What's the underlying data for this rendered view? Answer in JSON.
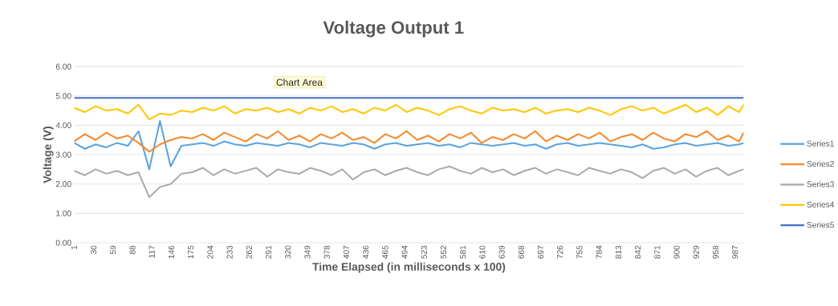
{
  "chart_data": {
    "type": "line",
    "title": "Voltage Output 1",
    "xlabel": "Time Elapsed (in milliseconds x 100)",
    "ylabel": "Voltage (V)",
    "annotations": [
      "Chart Area"
    ],
    "x": [
      1,
      17,
      33,
      49,
      65,
      81,
      97,
      113,
      129,
      145,
      161,
      177,
      193,
      209,
      225,
      241,
      257,
      273,
      289,
      305,
      321,
      337,
      353,
      369,
      385,
      401,
      417,
      433,
      449,
      465,
      481,
      497,
      513,
      529,
      545,
      561,
      577,
      593,
      609,
      625,
      641,
      657,
      673,
      689,
      705,
      721,
      737,
      753,
      769,
      785,
      801,
      817,
      833,
      849,
      865,
      881,
      897,
      913,
      929,
      945,
      961,
      977,
      993,
      1000
    ],
    "xlim": [
      1,
      1000
    ],
    "xticks": [
      1,
      30,
      59,
      88,
      117,
      146,
      175,
      204,
      233,
      262,
      291,
      320,
      349,
      378,
      407,
      436,
      465,
      494,
      523,
      552,
      581,
      610,
      639,
      668,
      697,
      726,
      755,
      784,
      813,
      842,
      871,
      900,
      929,
      958,
      987
    ],
    "ylim": [
      0,
      6
    ],
    "yticks": [
      {
        "value": 0,
        "label": "0.00"
      },
      {
        "value": 1,
        "label": "1.00"
      },
      {
        "value": 2,
        "label": "2.00"
      },
      {
        "value": 3,
        "label": "3.00"
      },
      {
        "value": 4,
        "label": "4.00"
      },
      {
        "value": 5,
        "label": "5.00"
      },
      {
        "value": 6,
        "label": "6.00"
      }
    ],
    "grid": "y",
    "legend": "right",
    "marker": "none",
    "line_style": "solid",
    "series": [
      {
        "name": "Series1",
        "color": "#5ba3dc",
        "values": [
          3.4,
          3.2,
          3.35,
          3.25,
          3.4,
          3.3,
          3.8,
          2.5,
          4.15,
          2.6,
          3.3,
          3.35,
          3.4,
          3.3,
          3.45,
          3.35,
          3.3,
          3.4,
          3.35,
          3.3,
          3.4,
          3.35,
          3.25,
          3.4,
          3.35,
          3.3,
          3.4,
          3.35,
          3.2,
          3.35,
          3.4,
          3.3,
          3.35,
          3.4,
          3.3,
          3.35,
          3.25,
          3.4,
          3.35,
          3.3,
          3.35,
          3.4,
          3.3,
          3.35,
          3.2,
          3.35,
          3.4,
          3.3,
          3.35,
          3.4,
          3.35,
          3.3,
          3.25,
          3.35,
          3.2,
          3.25,
          3.35,
          3.4,
          3.3,
          3.35,
          3.4,
          3.3,
          3.35,
          3.4
        ]
      },
      {
        "name": "Series2",
        "color": "#f5892a",
        "values": [
          3.45,
          3.7,
          3.5,
          3.75,
          3.55,
          3.65,
          3.4,
          3.1,
          3.35,
          3.5,
          3.6,
          3.55,
          3.7,
          3.5,
          3.75,
          3.6,
          3.45,
          3.7,
          3.55,
          3.8,
          3.5,
          3.65,
          3.45,
          3.7,
          3.55,
          3.75,
          3.5,
          3.6,
          3.4,
          3.7,
          3.55,
          3.8,
          3.5,
          3.65,
          3.45,
          3.7,
          3.55,
          3.75,
          3.4,
          3.6,
          3.5,
          3.7,
          3.55,
          3.8,
          3.45,
          3.65,
          3.5,
          3.7,
          3.55,
          3.75,
          3.45,
          3.6,
          3.7,
          3.5,
          3.75,
          3.55,
          3.45,
          3.7,
          3.6,
          3.8,
          3.5,
          3.65,
          3.45,
          3.75
        ]
      },
      {
        "name": "Series3",
        "color": "#aaaaaa",
        "values": [
          2.45,
          2.3,
          2.5,
          2.35,
          2.45,
          2.3,
          2.4,
          1.55,
          1.9,
          2.0,
          2.35,
          2.4,
          2.55,
          2.3,
          2.5,
          2.35,
          2.45,
          2.55,
          2.25,
          2.5,
          2.4,
          2.35,
          2.55,
          2.45,
          2.3,
          2.5,
          2.15,
          2.4,
          2.5,
          2.3,
          2.45,
          2.55,
          2.4,
          2.3,
          2.5,
          2.6,
          2.45,
          2.35,
          2.55,
          2.4,
          2.5,
          2.3,
          2.45,
          2.55,
          2.35,
          2.5,
          2.4,
          2.3,
          2.55,
          2.45,
          2.35,
          2.5,
          2.4,
          2.2,
          2.45,
          2.55,
          2.35,
          2.5,
          2.25,
          2.45,
          2.55,
          2.3,
          2.45,
          2.5
        ]
      },
      {
        "name": "Series4",
        "color": "#ffc700",
        "values": [
          4.6,
          4.45,
          4.65,
          4.5,
          4.55,
          4.4,
          4.7,
          4.2,
          4.4,
          4.35,
          4.5,
          4.45,
          4.6,
          4.5,
          4.65,
          4.4,
          4.55,
          4.5,
          4.6,
          4.45,
          4.55,
          4.4,
          4.6,
          4.5,
          4.65,
          4.45,
          4.55,
          4.4,
          4.6,
          4.5,
          4.7,
          4.45,
          4.6,
          4.5,
          4.35,
          4.55,
          4.65,
          4.5,
          4.4,
          4.6,
          4.5,
          4.55,
          4.45,
          4.6,
          4.4,
          4.5,
          4.55,
          4.45,
          4.6,
          4.5,
          4.35,
          4.55,
          4.65,
          4.5,
          4.6,
          4.4,
          4.55,
          4.7,
          4.45,
          4.6,
          4.35,
          4.65,
          4.45,
          4.7
        ]
      },
      {
        "name": "Series5",
        "color": "#4472c4",
        "x": [
          1,
          1000
        ],
        "values": [
          4.93,
          4.93
        ]
      }
    ]
  }
}
